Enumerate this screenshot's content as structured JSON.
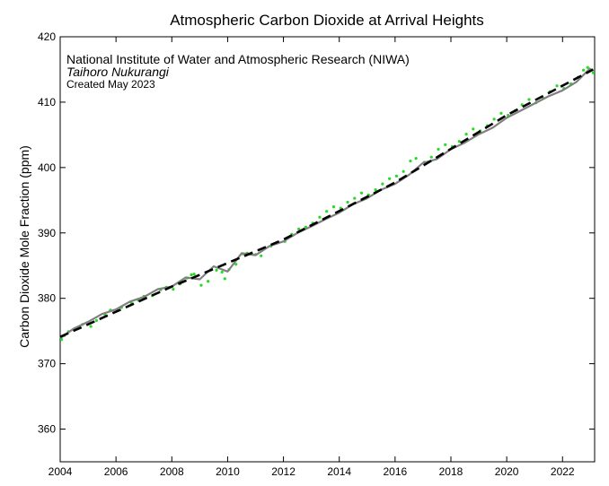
{
  "chart_data": {
    "type": "line",
    "title": "Atmospheric Carbon Dioxide at Arrival Heights",
    "xlabel": "",
    "ylabel": "Carbon Dioxide Mole Fraction (ppm)",
    "xlim": [
      2004,
      2023.15
    ],
    "ylim": [
      355,
      420
    ],
    "xticks": [
      2004,
      2006,
      2008,
      2010,
      2012,
      2014,
      2016,
      2018,
      2020,
      2022
    ],
    "yticks": [
      360,
      370,
      380,
      390,
      400,
      410,
      420
    ],
    "grid": false,
    "legend": "none",
    "annotations": [
      {
        "text": "National Institute of Water and Atmospheric Research (NIWA)",
        "style": "normal"
      },
      {
        "text": "Taihoro Nukurangi",
        "style": "italic"
      },
      {
        "text": "Created May 2023",
        "style": "small"
      }
    ],
    "series": [
      {
        "kind": "scatter-points",
        "color": "#22dd22",
        "x": [
          2004.05,
          2004.15,
          2004.3,
          2004.55,
          2004.8,
          2005.1,
          2005.3,
          2005.6,
          2005.8,
          2006.05,
          2006.2,
          2006.55,
          2006.8,
          2007.0,
          2007.3,
          2007.6,
          2007.8,
          2008.05,
          2008.3,
          2008.55,
          2008.7,
          2008.8,
          2009.05,
          2009.3,
          2009.6,
          2009.8,
          2009.9,
          2010.05,
          2010.3,
          2010.55,
          2010.7,
          2011.0,
          2011.2,
          2011.55,
          2011.75,
          2012.05,
          2012.3,
          2012.55,
          2012.8,
          2013.05,
          2013.3,
          2013.55,
          2013.8,
          2014.05,
          2014.3,
          2014.55,
          2014.8,
          2015.05,
          2015.3,
          2015.55,
          2015.8,
          2016.05,
          2016.3,
          2016.55,
          2016.75,
          2017.05,
          2017.3,
          2017.55,
          2017.8,
          2018.05,
          2018.3,
          2018.55,
          2018.8,
          2019.05,
          2019.3,
          2019.55,
          2019.8,
          2020.05,
          2020.3,
          2020.55,
          2020.8,
          2021.05,
          2021.3,
          2021.55,
          2021.8,
          2022.05,
          2022.3,
          2022.55,
          2022.75,
          2022.9,
          2023.0,
          2023.1
        ],
        "y": [
          373.7,
          374.3,
          374.9,
          375.4,
          376.0,
          375.7,
          376.6,
          377.6,
          378.2,
          378.2,
          378.6,
          379.3,
          379.7,
          380.3,
          380.4,
          381.3,
          381.7,
          381.4,
          382.2,
          383.1,
          383.6,
          383.7,
          382.0,
          382.6,
          384.3,
          384.0,
          383.0,
          384.4,
          385.2,
          386.8,
          386.9,
          386.7,
          386.5,
          388.0,
          388.4,
          388.7,
          389.8,
          390.6,
          390.9,
          391.5,
          392.4,
          393.3,
          394.0,
          393.8,
          394.7,
          395.3,
          396.1,
          395.8,
          396.6,
          397.5,
          398.3,
          398.7,
          399.4,
          401.0,
          401.4,
          400.8,
          401.6,
          402.8,
          403.5,
          403.2,
          404.0,
          405.1,
          405.9,
          405.6,
          406.4,
          407.4,
          408.3,
          408.0,
          408.7,
          409.6,
          410.4,
          409.9,
          410.6,
          411.6,
          412.5,
          412.1,
          412.8,
          413.8,
          414.9,
          415.3,
          415.0,
          414.5
        ]
      },
      {
        "kind": "seasonal-fit",
        "color": "#808080",
        "x": [
          2004.0,
          2004.5,
          2005.0,
          2005.5,
          2006.0,
          2006.5,
          2007.0,
          2007.5,
          2008.0,
          2008.5,
          2009.0,
          2009.5,
          2010.0,
          2010.5,
          2011.0,
          2011.5,
          2012.0,
          2012.5,
          2013.0,
          2013.5,
          2014.0,
          2014.5,
          2015.0,
          2015.5,
          2016.0,
          2016.5,
          2017.0,
          2017.5,
          2018.0,
          2018.5,
          2019.0,
          2019.5,
          2020.0,
          2020.5,
          2021.0,
          2021.5,
          2022.0,
          2022.5,
          2023.0
        ],
        "y": [
          373.9,
          375.4,
          376.4,
          377.6,
          378.3,
          379.5,
          380.2,
          381.4,
          381.8,
          383.2,
          382.9,
          384.9,
          384.1,
          386.9,
          386.6,
          388.0,
          388.7,
          390.0,
          391.0,
          392.1,
          393.1,
          394.4,
          395.3,
          396.6,
          397.5,
          398.9,
          400.7,
          401.3,
          402.8,
          403.8,
          405.1,
          406.1,
          407.6,
          408.7,
          409.8,
          410.9,
          411.8,
          413.1,
          415.2
        ]
      },
      {
        "kind": "trend",
        "color": "#000000",
        "x": [
          2004.0,
          2008.0,
          2012.0,
          2016.0,
          2020.0,
          2023.1
        ],
        "y": [
          374.1,
          381.8,
          389.0,
          397.7,
          408.0,
          415.0
        ]
      }
    ]
  }
}
